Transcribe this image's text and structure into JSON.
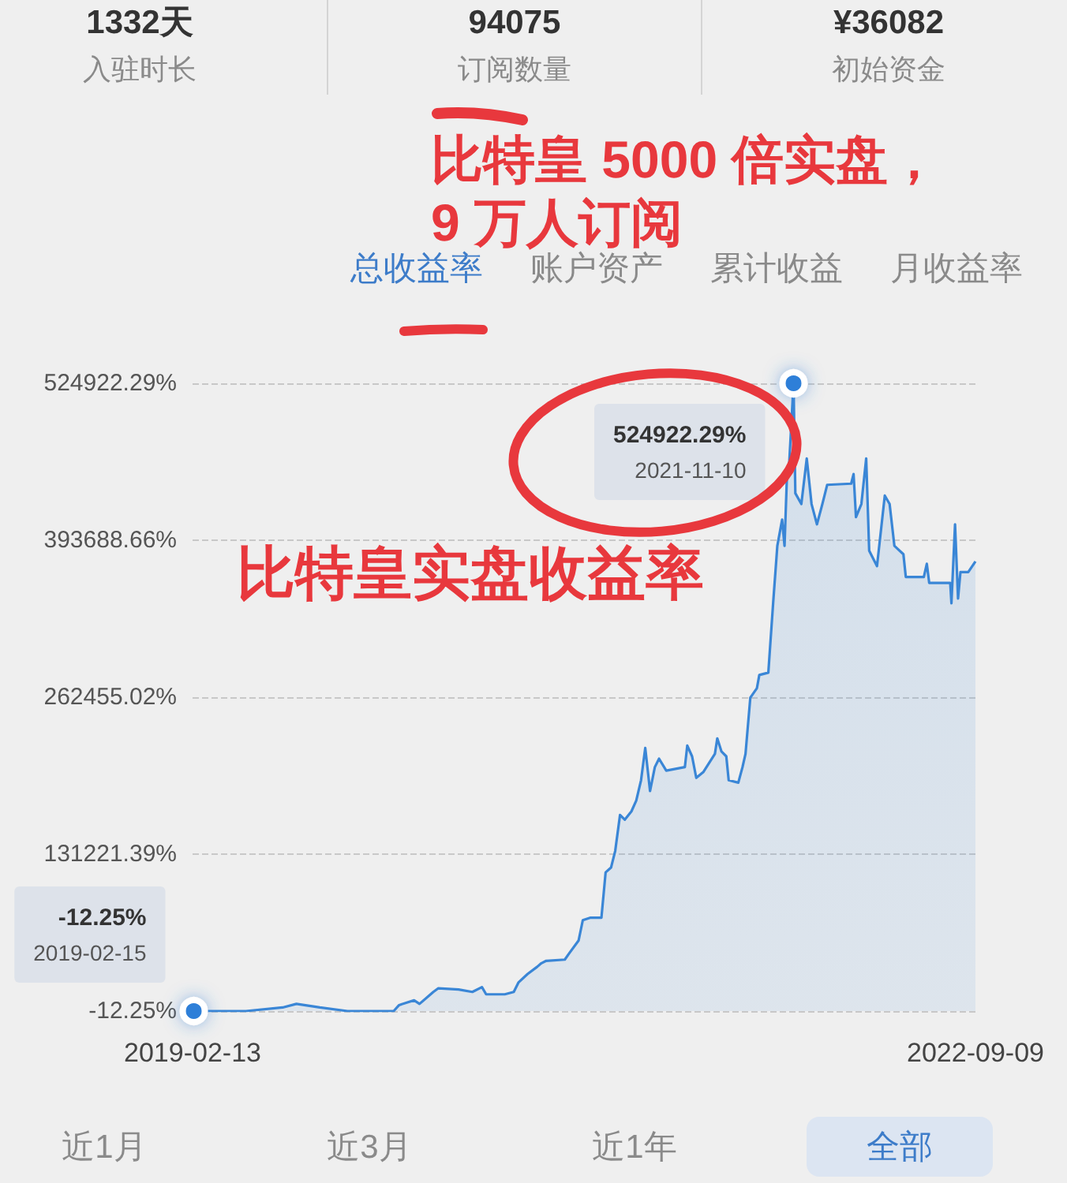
{
  "chart_data": [
    {
      "type": "other",
      "annotations": [
        "1332天",
        "入驻时长",
        "94075",
        "订阅数量",
        "¥36082",
        "初始资金"
      ]
    },
    {
      "type": "area",
      "title": "比特皇 5000 倍实盘，\n9 万人订阅",
      "color": "#3a86d6",
      "x": [
        "2019-02-13",
        "2019-05-13",
        "2019-07-13",
        "2019-08-05",
        "2019-09-13",
        "2019-10-29",
        "2020-01-14",
        "2020-01-23",
        "2020-02-17",
        "2020-02-26",
        "2020-03-20",
        "2020-03-28",
        "2020-05-01",
        "2020-05-24",
        "2020-06-09",
        "2020-06-16",
        "2020-07-17",
        "2020-08-01",
        "2020-08-09",
        "2020-08-24",
        "2020-09-09",
        "2020-09-16",
        "2020-09-24",
        "2020-10-25",
        "2020-11-01",
        "2020-11-17",
        "2020-11-24",
        "2020-12-06",
        "2020-12-25",
        "2021-01-01",
        "2021-01-10",
        "2021-01-17",
        "2021-01-25",
        "2021-02-02",
        "2021-02-13",
        "2021-02-21",
        "2021-03-01",
        "2021-03-08",
        "2021-03-16",
        "2021-03-24",
        "2021-03-31",
        "2021-04-12",
        "2021-05-13",
        "2021-05-17",
        "2021-05-25",
        "2021-06-01",
        "2021-06-13",
        "2021-07-02",
        "2021-07-06",
        "2021-07-13",
        "2021-07-21",
        "2021-07-25",
        "2021-08-10",
        "2021-08-17",
        "2021-08-22",
        "2021-08-30",
        "2021-09-10",
        "2021-09-14",
        "2021-09-29",
        "2021-10-07",
        "2021-10-14",
        "2021-10-22",
        "2021-10-26",
        "2021-10-30",
        "2021-11-03",
        "2021-11-10",
        "2021-11-13",
        "2021-11-23",
        "2021-12-02",
        "2021-12-10",
        "2021-12-19",
        "2021-12-28",
        "2022-01-05",
        "2022-02-14",
        "2022-02-18",
        "2022-02-22",
        "2022-03-03",
        "2022-03-11",
        "2022-03-16",
        "2022-03-29",
        "2022-04-11",
        "2022-04-19",
        "2022-04-27",
        "2022-05-12",
        "2022-05-16",
        "2022-06-15",
        "2022-06-20",
        "2022-06-24",
        "2022-07-29",
        "2022-07-31",
        "2022-08-06",
        "2022-08-11",
        "2022-08-15",
        "2022-08-28",
        "2022-09-09"
      ],
      "values": [
        -12.25,
        0,
        3000,
        6000,
        3000,
        0,
        0,
        5000,
        9000,
        6000,
        16000,
        19000,
        18000,
        16000,
        20000,
        14000,
        14000,
        16000,
        24000,
        31000,
        37000,
        40000,
        42000,
        43000,
        48000,
        59000,
        76000,
        78000,
        78000,
        116000,
        120000,
        134000,
        164000,
        160000,
        167000,
        176000,
        193000,
        220000,
        184000,
        204000,
        211000,
        201000,
        204000,
        222000,
        213000,
        195000,
        200000,
        215000,
        228000,
        217000,
        213000,
        193000,
        191000,
        204000,
        215000,
        262000,
        270000,
        281000,
        283000,
        341000,
        389000,
        411000,
        389000,
        447000,
        460000,
        524922.29,
        433000,
        424000,
        462000,
        424000,
        407000,
        424000,
        440000,
        441000,
        449000,
        413000,
        424000,
        462000,
        385000,
        372000,
        431000,
        424000,
        389000,
        382000,
        363000,
        363000,
        374000,
        358000,
        358000,
        341000,
        407000,
        345000,
        367000,
        367000,
        376000
      ],
      "xlim": [
        "2019-02-13",
        "2022-09-09"
      ],
      "xticks": [
        "2019-02-13",
        "2022-09-09"
      ],
      "ylim": [
        -12.25,
        524922.29
      ],
      "yticks": [
        {
          "value": -12.25,
          "label": "-12.25%"
        },
        {
          "value": 131221.39,
          "label": "131221.39%"
        },
        {
          "value": 262455.02,
          "label": "262455.02%"
        },
        {
          "value": 393688.66,
          "label": "393688.66%"
        },
        {
          "value": 524922.29,
          "label": "524922.29%"
        }
      ],
      "grid": "y",
      "annotations": [
        {
          "text": "524922.29%\n2021-11-10",
          "x": "2021-11-10",
          "y": 524922.29
        },
        {
          "text": "-12.25%\n2019-02-15",
          "x": "2019-02-15",
          "y": -12.25
        },
        "比特皇实盘收益率"
      ]
    },
    {
      "type": "other",
      "annotations": [
        "总收益率",
        "账户资产",
        "累计收益",
        "月收益率"
      ]
    },
    {
      "type": "other",
      "annotations": [
        "近1月",
        "近3月",
        "近1年",
        "全部"
      ]
    }
  ]
}
